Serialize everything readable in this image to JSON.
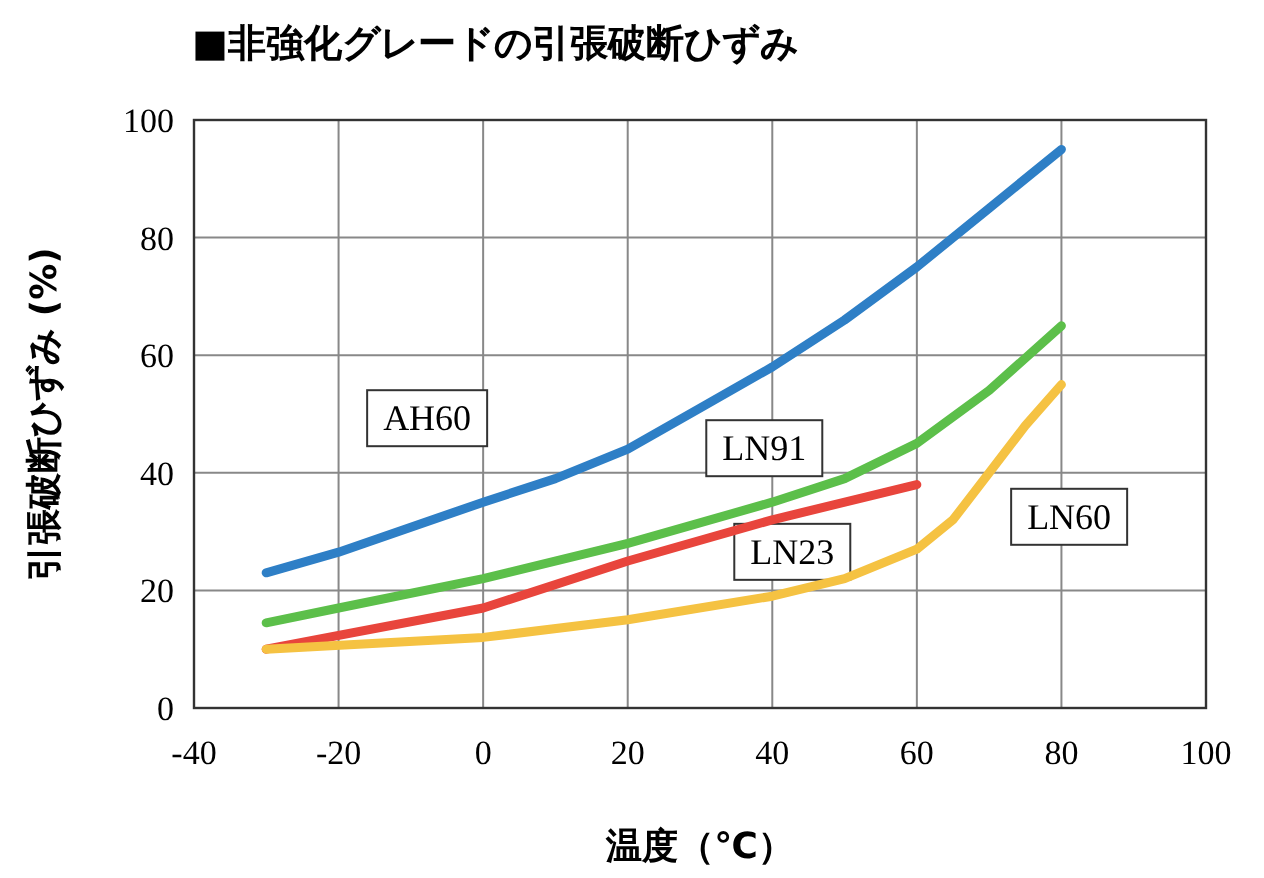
{
  "chart_data": {
    "type": "line",
    "title": "■非強化グレードの引張破断ひずみ",
    "xlabel": "温度（℃）",
    "ylabel": "引張破断ひずみ (%)",
    "xlim": [
      -40,
      100
    ],
    "xticks": [
      -40,
      -20,
      0,
      20,
      40,
      60,
      80,
      100
    ],
    "ylim": [
      0,
      100
    ],
    "yticks": [
      0,
      20,
      40,
      60,
      80,
      100
    ],
    "grid": true,
    "marker": "none",
    "line_style": "solid",
    "series": [
      {
        "name": "AH60",
        "color": "#2e7fc6",
        "x": [
          -30,
          -20,
          0,
          10,
          20,
          30,
          40,
          50,
          60,
          70,
          80
        ],
        "values": [
          23,
          26.5,
          35,
          39,
          44,
          51,
          58,
          66,
          75,
          85,
          95
        ]
      },
      {
        "name": "LN91",
        "color": "#5cbf4a",
        "x": [
          -30,
          -20,
          0,
          20,
          40,
          50,
          60,
          70,
          80
        ],
        "values": [
          14.5,
          17,
          22,
          28,
          35,
          39,
          45,
          54,
          65
        ]
      },
      {
        "name": "LN23",
        "color": "#e8453c",
        "x": [
          -30,
          0,
          20,
          40,
          60
        ],
        "values": [
          10,
          17,
          25,
          32,
          38
        ]
      },
      {
        "name": "LN60",
        "color": "#f5c242",
        "x": [
          -30,
          0,
          20,
          40,
          50,
          60,
          65,
          70,
          75,
          80
        ],
        "values": [
          10,
          12,
          15,
          19,
          22,
          27,
          32,
          40,
          48,
          55
        ]
      }
    ]
  }
}
